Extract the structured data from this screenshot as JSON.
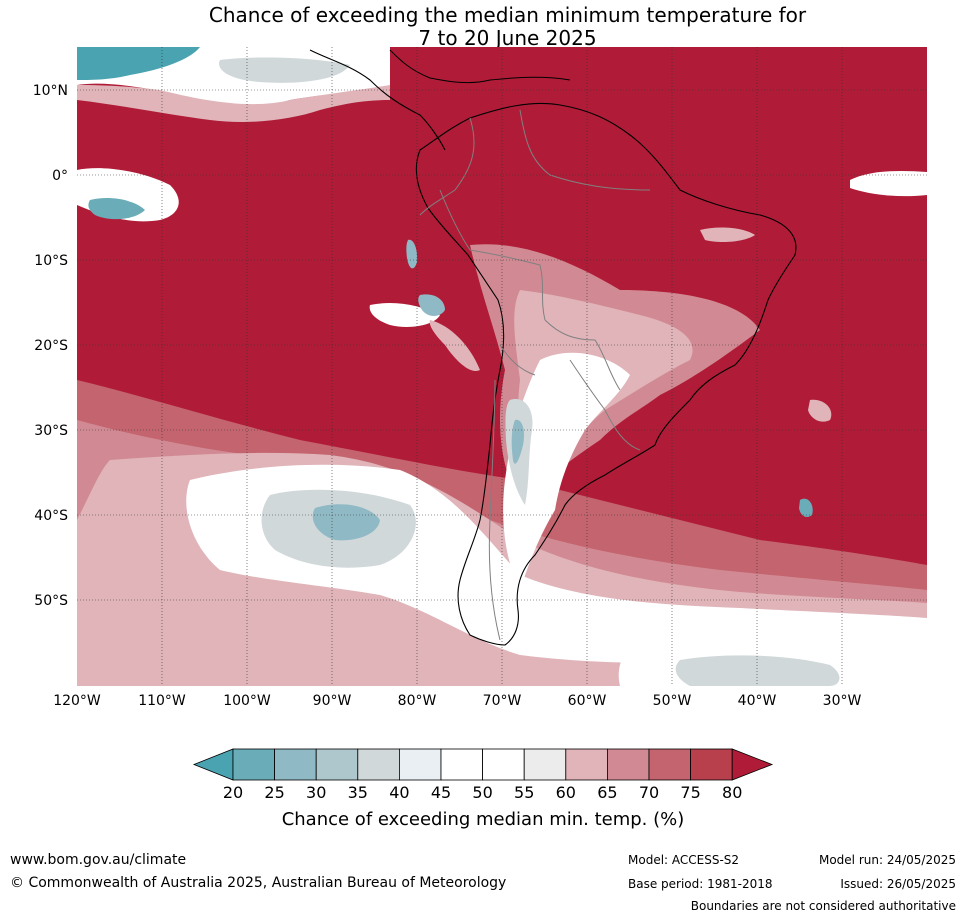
{
  "header": {
    "title_line1": "Chance of exceeding the median minimum temperature for",
    "title_line2": "7 to 20 June 2025"
  },
  "map": {
    "lat_labels": [
      "10°N",
      "0°",
      "10°S",
      "20°S",
      "30°S",
      "40°S",
      "50°S"
    ],
    "lon_labels": [
      "120°W",
      "110°W",
      "100°W",
      "90°W",
      "80°W",
      "70°W",
      "60°W",
      "50°W",
      "40°W",
      "30°W"
    ]
  },
  "colorbar": {
    "ticks": [
      "20",
      "25",
      "30",
      "35",
      "40",
      "45",
      "50",
      "55",
      "60",
      "65",
      "70",
      "75",
      "80"
    ],
    "colors": [
      "#4aa3b1",
      "#6aadb9",
      "#8fb9c5",
      "#adc7cd",
      "#d1d8da",
      "#e9eff2",
      "#ffffff",
      "#ffffff",
      "#ececed",
      "#e0b4b9",
      "#d18a93",
      "#c4646f",
      "#b8404c",
      "#b01c37"
    ],
    "label": "Chance of exceeding median min. temp. (%)"
  },
  "footer": {
    "url": "www.bom.gov.au/climate",
    "copyright": "© Commonwealth of Australia 2025, Australian Bureau of Meteorology",
    "model": "Model: ACCESS-S2",
    "base_period": "Base period: 1981-2018",
    "model_run": "Model run: 24/05/2025",
    "issued": "Issued: 26/05/2025",
    "disclaimer": "Boundaries are not considered authoritative"
  }
}
